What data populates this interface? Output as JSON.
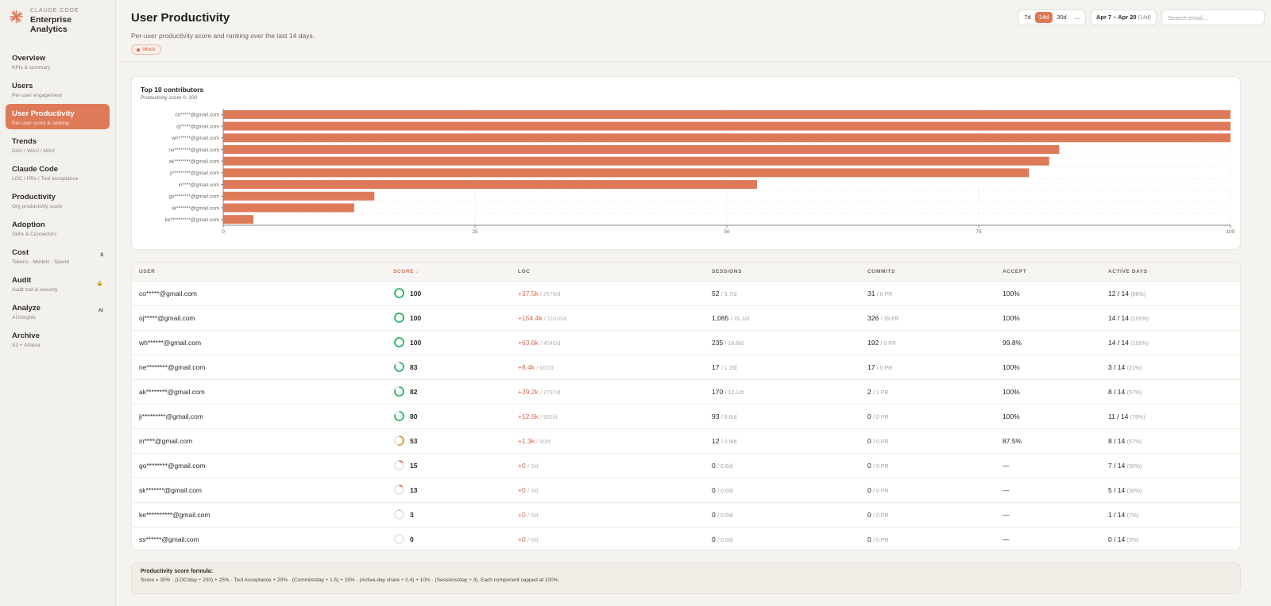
{
  "brand": {
    "small": "CLAUDE CODE",
    "name": "Enterprise Analytics"
  },
  "sidebar": {
    "items": [
      {
        "label": "Overview",
        "sub": "KPIs & summary",
        "badge": "",
        "active": false
      },
      {
        "label": "Users",
        "sub": "Per-user engagement",
        "badge": "",
        "active": false
      },
      {
        "label": "User Productivity",
        "sub": "Per-user score & ranking",
        "badge": "",
        "active": true
      },
      {
        "label": "Trends",
        "sub": "DAU / WAU / MAU",
        "badge": "",
        "active": false
      },
      {
        "label": "Claude Code",
        "sub": "LOC / PRs / Tool acceptance",
        "badge": "",
        "active": false
      },
      {
        "label": "Productivity",
        "sub": "Org productivity score",
        "badge": "",
        "active": false
      },
      {
        "label": "Adoption",
        "sub": "Skills & Connectors",
        "badge": "",
        "active": false
      },
      {
        "label": "Cost",
        "sub": "Tokens · Models · Spend",
        "badge": "$",
        "active": false
      },
      {
        "label": "Audit",
        "sub": "Audit trail & security",
        "badge": "🔒",
        "active": false
      },
      {
        "label": "Analyze",
        "sub": "AI insights",
        "badge": "AI",
        "active": false
      },
      {
        "label": "Archive",
        "sub": "S3 + Athena",
        "badge": "",
        "active": false
      }
    ]
  },
  "header": {
    "title": "User Productivity",
    "subtitle": "Per-user productivity score and ranking over the last 14 days.",
    "mock_label": "Mock",
    "ranges": [
      "7d",
      "14d",
      "30d",
      "..."
    ],
    "active_range": "14d",
    "date_range": "Apr 7 – Apr 20",
    "date_range_days": "(14d)",
    "search_placeholder": "Search email..."
  },
  "chart_data": {
    "type": "bar",
    "orientation": "horizontal",
    "title": "Top 10 contributors",
    "subtitle": "Productivity score 0–100",
    "categories": [
      "co*****@gmail.com",
      "oj*****@gmail.com",
      "wh******@gmail.com",
      "ne********@gmail.com",
      "ak********@gmail.com",
      "ji*********@gmail.com",
      "in****@gmail.com",
      "go********@gmail.com",
      "sk*******@gmail.com",
      "ke**********@gmail.com"
    ],
    "values": [
      100,
      100,
      100,
      83,
      82,
      80,
      53,
      15,
      13,
      3
    ],
    "xlim": [
      0,
      100
    ],
    "xticks": [
      0,
      25,
      50,
      75,
      100
    ],
    "grid": true,
    "color": "#de7a58"
  },
  "table": {
    "headers": [
      "USER",
      "SCORE ↓",
      "LOC",
      "SESSIONS",
      "COMMITS",
      "ACCEPT",
      "ACTIVE DAYS"
    ],
    "rows": [
      {
        "user": "co*****@gmail.com",
        "score": 100,
        "score_label": "100",
        "loc": "+37.5k",
        "loc_sub": "/ 2676/d",
        "sessions": "52",
        "sessions_sub": "/ 3.7/d",
        "commits": "31",
        "commits_sub": "/ 0 PR",
        "accept": "100%",
        "days": "12 / 14",
        "days_sub": "(86%)"
      },
      {
        "user": "oj*****@gmail.com",
        "score": 100,
        "score_label": "100",
        "loc": "+154.4k",
        "loc_sub": "/ 11026/d",
        "sessions": "1,065",
        "sessions_sub": "/ 76.1/d",
        "commits": "326",
        "commits_sub": "/ 39 PR",
        "accept": "100%",
        "days": "14 / 14",
        "days_sub": "(100%)"
      },
      {
        "user": "wh******@gmail.com",
        "score": 100,
        "score_label": "100",
        "loc": "+63.6k",
        "loc_sub": "/ 4540/d",
        "sessions": "235",
        "sessions_sub": "/ 16.8/d",
        "commits": "192",
        "commits_sub": "/ 0 PR",
        "accept": "99.8%",
        "days": "14 / 14",
        "days_sub": "(100%)"
      },
      {
        "user": "ne********@gmail.com",
        "score": 83,
        "score_label": "83",
        "loc": "+8.4k",
        "loc_sub": "/ 601/d",
        "sessions": "17",
        "sessions_sub": "/ 1.2/d",
        "commits": "17",
        "commits_sub": "/ 0 PR",
        "accept": "100%",
        "days": "3 / 14",
        "days_sub": "(21%)"
      },
      {
        "user": "ak********@gmail.com",
        "score": 82,
        "score_label": "82",
        "loc": "+39.2k",
        "loc_sub": "/ 2797/d",
        "sessions": "170",
        "sessions_sub": "/ 12.1/d",
        "commits": "2",
        "commits_sub": "/ 1 PR",
        "accept": "100%",
        "days": "8 / 14",
        "days_sub": "(57%)"
      },
      {
        "user": "ji*********@gmail.com",
        "score": 80,
        "score_label": "80",
        "loc": "+12.6k",
        "loc_sub": "/ 902/d",
        "sessions": "93",
        "sessions_sub": "/ 6.6/d",
        "commits": "0",
        "commits_sub": "/ 0 PR",
        "accept": "100%",
        "days": "11 / 14",
        "days_sub": "(79%)"
      },
      {
        "user": "in****@gmail.com",
        "score": 53,
        "score_label": "53",
        "loc": "+1.3k",
        "loc_sub": "/ 90/d",
        "sessions": "12",
        "sessions_sub": "/ 0.9/d",
        "commits": "0",
        "commits_sub": "/ 0 PR",
        "accept": "87.5%",
        "days": "8 / 14",
        "days_sub": "(57%)"
      },
      {
        "user": "go********@gmail.com",
        "score": 15,
        "score_label": "15",
        "loc": "+0",
        "loc_sub": "/ 0/d",
        "sessions": "0",
        "sessions_sub": "/ 0.0/d",
        "commits": "0",
        "commits_sub": "/ 0 PR",
        "accept": "—",
        "days": "7 / 14",
        "days_sub": "(50%)"
      },
      {
        "user": "sk*******@gmail.com",
        "score": 13,
        "score_label": "13",
        "loc": "+0",
        "loc_sub": "/ 0/d",
        "sessions": "0",
        "sessions_sub": "/ 0.0/d",
        "commits": "0",
        "commits_sub": "/ 0 PR",
        "accept": "—",
        "days": "5 / 14",
        "days_sub": "(36%)"
      },
      {
        "user": "ke**********@gmail.com",
        "score": 3,
        "score_label": "3",
        "loc": "+0",
        "loc_sub": "/ 0/d",
        "sessions": "0",
        "sessions_sub": "/ 0.0/d",
        "commits": "0",
        "commits_sub": "/ 0 PR",
        "accept": "—",
        "days": "1 / 14",
        "days_sub": "(7%)"
      },
      {
        "user": "ss******@gmail.com",
        "score": 0,
        "score_label": "0",
        "loc": "+0",
        "loc_sub": "/ 0/d",
        "sessions": "0",
        "sessions_sub": "/ 0.0/d",
        "commits": "0",
        "commits_sub": "/ 0 PR",
        "accept": "—",
        "days": "0 / 14",
        "days_sub": "(0%)"
      }
    ]
  },
  "formula": {
    "title": "Productivity score formula:",
    "text": "Score = 30% · (LOC/day ÷ 200) + 25% · Tool Acceptance + 20% · (Commits/day ÷ 1.5) + 15% · (Active-day share ÷ 0.4) + 10% · (Sessions/day ÷ 3). Each component capped at 100%."
  },
  "colors": {
    "accent": "#de7a58",
    "score_high": "#2fb36b",
    "score_mid": "#d99a3a",
    "score_low": "#e0664a"
  }
}
